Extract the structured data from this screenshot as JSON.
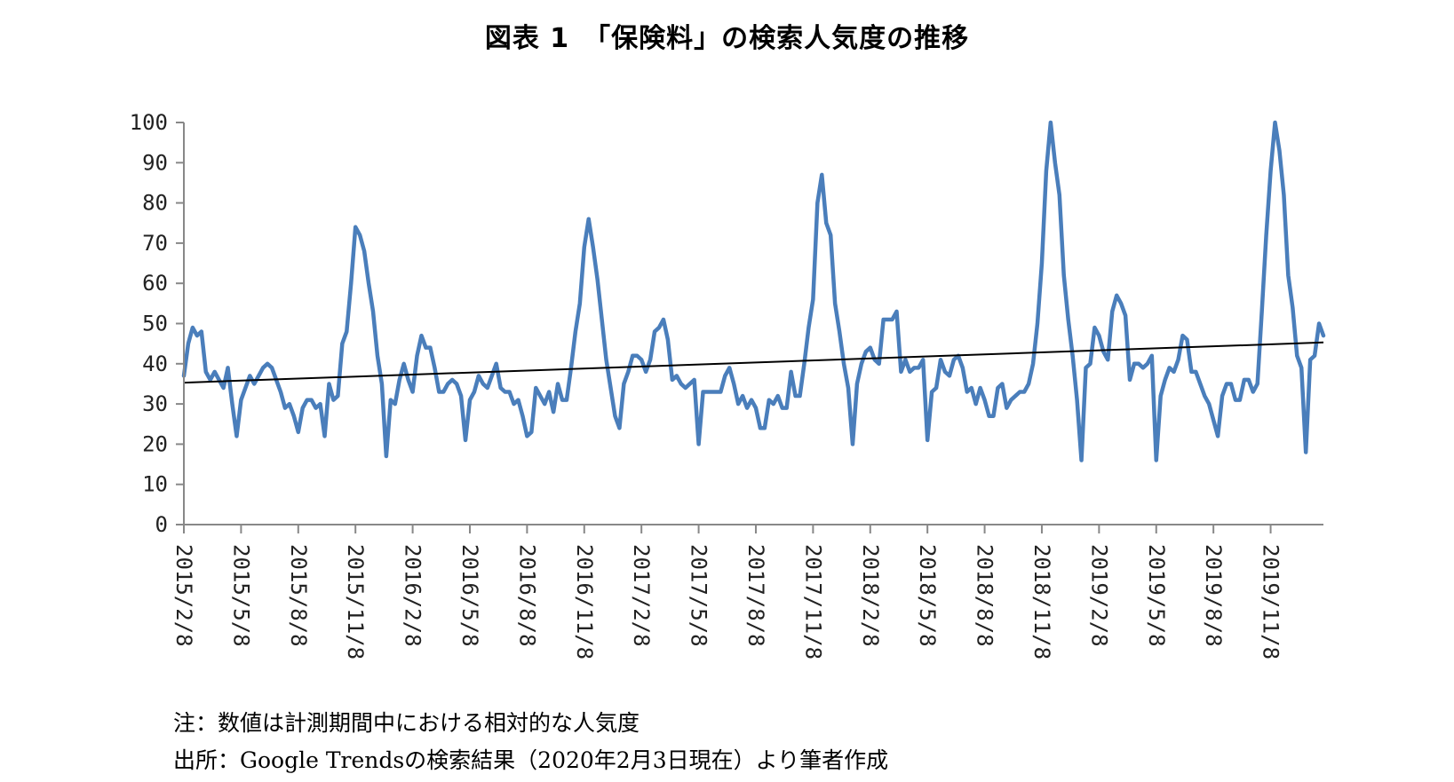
{
  "title": "図表 1　「保険料」の検索人気度の推移",
  "note": "注：数値は計測期間中における相対的な人気度",
  "source": "出所：Google Trendsの検索結果（2020年2月3日現在）より筆者作成",
  "chart_data": {
    "type": "line",
    "title": "図表 1　「保険料」の検索人気度の推移",
    "xlabel": "",
    "ylabel": "",
    "ylim": [
      0,
      100
    ],
    "yticks": [
      0,
      10,
      20,
      30,
      40,
      50,
      60,
      70,
      80,
      90,
      100
    ],
    "xtick_labels": [
      "2015/2/8",
      "2015/5/8",
      "2015/8/8",
      "2015/11/8",
      "2016/2/8",
      "2016/5/8",
      "2016/8/8",
      "2016/11/8",
      "2017/2/8",
      "2017/5/8",
      "2017/8/8",
      "2017/11/8",
      "2018/2/8",
      "2018/5/8",
      "2018/8/8",
      "2018/11/8",
      "2019/2/8",
      "2019/5/8",
      "2019/8/8",
      "2019/11/8"
    ],
    "x_start": "2015-02-08",
    "x_interval": "weekly",
    "line_color": "#4a7ebb",
    "trend_color": "#000000",
    "grid": false,
    "legend": "none",
    "series": [
      {
        "values": [
          37,
          45,
          49,
          47,
          48,
          38,
          36,
          38,
          36,
          34,
          39,
          30,
          22,
          31,
          34,
          37,
          35,
          37,
          39,
          40,
          39,
          36,
          33,
          29,
          30,
          27,
          23,
          29,
          31,
          31,
          29,
          30,
          22,
          35,
          31,
          32,
          45,
          48,
          60,
          74,
          72,
          68,
          60,
          53,
          42,
          35,
          17,
          31,
          30,
          36,
          40,
          36,
          33,
          42,
          47,
          44,
          44,
          39,
          33,
          33,
          35,
          36,
          35,
          32,
          21,
          31,
          33,
          37,
          35,
          34,
          37,
          40,
          34,
          33,
          33,
          30,
          31,
          27,
          22,
          23,
          34,
          32,
          30,
          33,
          28,
          35,
          31,
          31,
          39,
          48,
          55,
          69,
          76,
          69,
          61,
          51,
          41,
          34,
          27,
          24,
          35,
          38,
          42,
          42,
          41,
          38,
          41,
          48,
          49,
          51,
          46,
          36,
          37,
          35,
          34,
          35,
          36,
          20,
          33,
          33,
          33,
          33,
          33,
          37,
          39,
          35,
          30,
          32,
          29,
          31,
          29,
          24,
          24,
          31,
          30,
          32,
          29,
          29,
          38,
          32,
          32,
          40,
          49,
          56,
          80,
          87,
          75,
          72,
          55,
          48,
          40,
          34,
          20,
          35,
          40,
          43,
          44,
          41,
          40,
          51,
          51,
          51,
          53,
          38,
          41,
          38,
          39,
          39,
          41,
          21,
          33,
          34,
          41,
          38,
          37,
          41,
          42,
          39,
          33,
          34,
          30,
          34,
          31,
          27,
          27,
          34,
          35,
          29,
          31,
          32,
          33,
          33,
          35,
          40,
          50,
          65,
          88,
          100,
          90,
          82,
          62,
          51,
          42,
          31,
          16,
          39,
          40,
          49,
          47,
          43,
          41,
          53,
          57,
          55,
          52,
          36,
          40,
          40,
          39,
          40,
          42,
          16,
          32,
          36,
          39,
          38,
          41,
          47,
          46,
          38,
          38,
          35,
          32,
          30,
          26,
          22,
          32,
          35,
          35,
          31,
          31,
          36,
          36,
          33,
          35,
          53,
          72,
          88,
          100,
          93,
          82,
          62,
          54,
          42,
          39,
          18,
          41,
          42,
          50,
          47
        ]
      }
    ],
    "trend_line": {
      "start": 35.3,
      "end": 45.3
    }
  }
}
